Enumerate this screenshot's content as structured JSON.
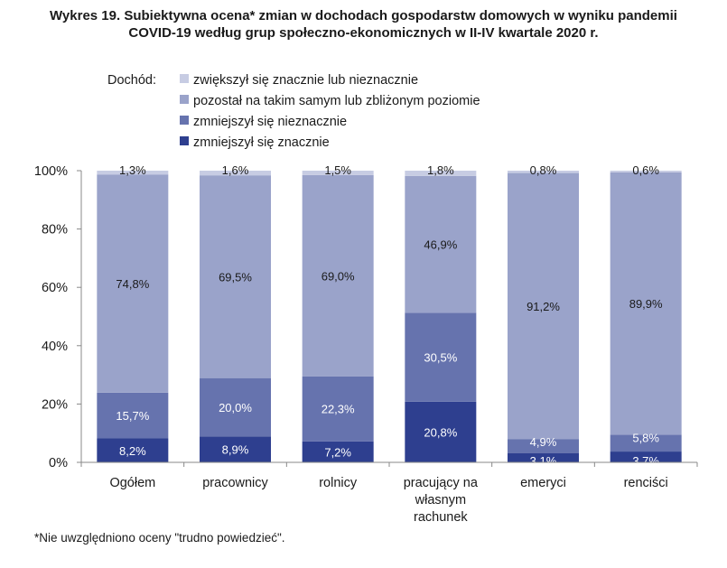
{
  "chart_data": {
    "type": "bar",
    "stacked": true,
    "title_line1": "Wykres 19. Subiektywna ocena* zmian w dochodach gospodarstw domowych w wyniku pandemii",
    "title_line2": "COVID-19 według grup społeczno-ekonomicznych w II-IV kwartale 2020 r.",
    "legend_title": "Dochód:",
    "legend_placement": "top",
    "categories": [
      "Ogółem",
      "pracownicy",
      "rolnicy",
      "pracujący na własnym rachunek",
      "emeryci",
      "renciści"
    ],
    "category_lines": [
      [
        "Ogółem"
      ],
      [
        "pracownicy"
      ],
      [
        "rolnicy"
      ],
      [
        "pracujący na",
        "własnym",
        "rachunek"
      ],
      [
        "emeryci"
      ],
      [
        "renciści"
      ]
    ],
    "series": [
      {
        "name": "zmniejszył się znacznie",
        "color": "#2e3f8f",
        "label_color": "#ffffff",
        "values": [
          8.2,
          8.9,
          7.2,
          20.8,
          3.1,
          3.7
        ],
        "labels": [
          "8,2%",
          "8,9%",
          "7,2%",
          "20,8%",
          "3,1%",
          "3,7%"
        ]
      },
      {
        "name": "zmniejszył się nieznacznie",
        "color": "#6673ae",
        "label_color": "#ffffff",
        "values": [
          15.7,
          20.0,
          22.3,
          30.5,
          4.9,
          5.8
        ],
        "labels": [
          "15,7%",
          "20,0%",
          "22,3%",
          "30,5%",
          "4,9%",
          "5,8%"
        ]
      },
      {
        "name": "pozostał na takim samym lub zbliżonym poziomie",
        "color": "#9aa3ca",
        "label_color": "#1a1a1a",
        "values": [
          74.8,
          69.5,
          69.0,
          46.9,
          91.2,
          89.9
        ],
        "labels": [
          "74,8%",
          "69,5%",
          "69,0%",
          "46,9%",
          "91,2%",
          "89,9%"
        ]
      },
      {
        "name": "zwiększył się znacznie lub nieznacznie",
        "color": "#c7cce3",
        "label_color": "#1a1a1a",
        "values": [
          1.3,
          1.6,
          1.5,
          1.8,
          0.8,
          0.6
        ],
        "labels": [
          "1,3%",
          "1,6%",
          "1,5%",
          "1,8%",
          "0,8%",
          "0,6%"
        ]
      }
    ],
    "legend_order": [
      3,
      2,
      1,
      0
    ],
    "ylim": [
      0,
      100
    ],
    "yticks": [
      0,
      20,
      40,
      60,
      80,
      100
    ],
    "ytick_labels": [
      "0%",
      "20%",
      "40%",
      "60%",
      "80%",
      "100%"
    ],
    "grid": false
  },
  "footnote": "*Nie uwzględniono oceny \"trudno powiedzieć\"."
}
